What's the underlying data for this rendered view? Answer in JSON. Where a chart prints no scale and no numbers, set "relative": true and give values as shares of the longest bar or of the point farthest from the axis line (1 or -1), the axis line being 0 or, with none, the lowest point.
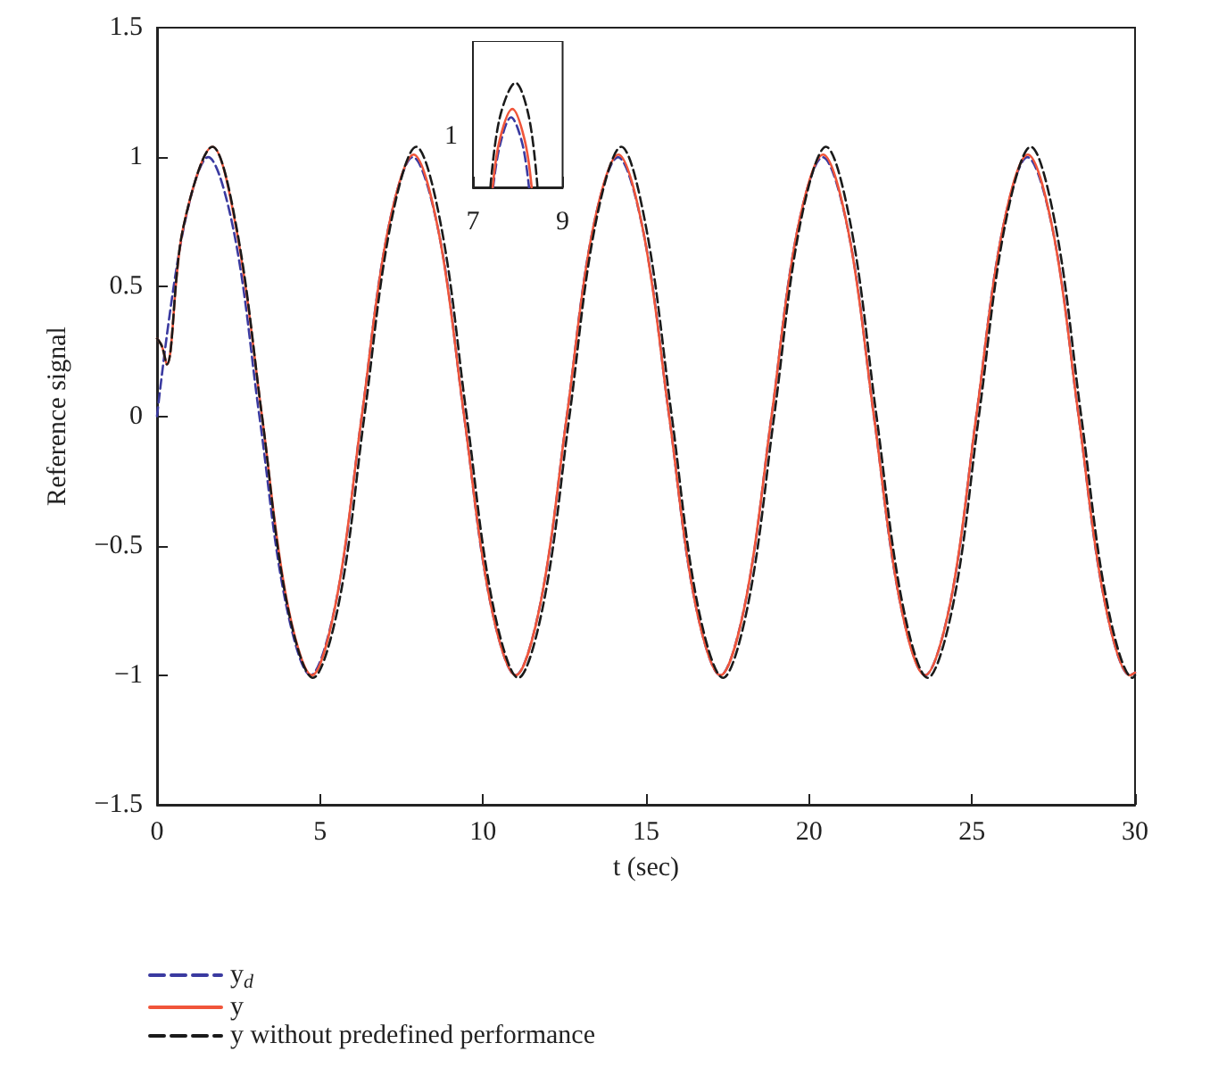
{
  "chart_data": [
    {
      "type": "line",
      "xlabel": "t (sec)",
      "ylabel": "Reference signal",
      "xlim": [
        0,
        30
      ],
      "ylim": [
        -1.5,
        1.5
      ],
      "xticks": [
        0,
        5,
        10,
        15,
        20,
        25,
        30
      ],
      "yticks": [
        {
          "value": -1.5,
          "label": "−1.5"
        },
        {
          "value": -1,
          "label": "−1"
        },
        {
          "value": -0.5,
          "label": "−0.5"
        },
        0,
        0.5,
        1,
        1.5
      ],
      "grid": false,
      "legend": "bottom left",
      "marker": "none",
      "series": [
        {
          "name": "y$_{d}$",
          "color": "#3a3aa0",
          "line_style": "dashed",
          "x": [
            0,
            0.79,
            1.57,
            2.36,
            3.14,
            3.93,
            4.71,
            5.5,
            6.28,
            7.07,
            7.85,
            8.64,
            9.42,
            10.21,
            11,
            11.78,
            12.57,
            13.35,
            14.14,
            14.92,
            15.71,
            16.49,
            17.28,
            18.06,
            18.85,
            19.63,
            20.42,
            21.21,
            21.99,
            22.78,
            23.56,
            24.35,
            25.13,
            25.92,
            26.7,
            27.49,
            28.27,
            29.06,
            29.85,
            30
          ],
          "values": [
            0,
            0.71,
            1,
            0.71,
            0,
            -0.71,
            -1,
            -0.71,
            0,
            0.71,
            1,
            0.71,
            0,
            -0.71,
            -1,
            -0.71,
            0,
            0.71,
            1,
            0.71,
            0,
            -0.71,
            -1,
            -0.71,
            0,
            0.71,
            1,
            0.71,
            0,
            -0.71,
            -1,
            -0.71,
            0,
            0.71,
            1,
            0.71,
            0,
            -0.71,
            -1,
            -0.99
          ]
        },
        {
          "name": "y",
          "color": "#f0553a",
          "line_style": "solid",
          "x": [
            0,
            0.15,
            0.3,
            0.79,
            1.7,
            2.45,
            3.22,
            3.98,
            4.75,
            5.5,
            6.28,
            7.07,
            7.87,
            8.64,
            9.42,
            10.21,
            11,
            11.78,
            12.57,
            13.35,
            14.15,
            14.92,
            15.71,
            16.49,
            17.28,
            18.06,
            18.85,
            19.63,
            20.43,
            21.21,
            21.99,
            22.78,
            23.56,
            24.35,
            25.13,
            25.92,
            26.71,
            27.49,
            28.27,
            29.06,
            29.85,
            30
          ],
          "values": [
            0.3,
            0.27,
            0.2,
            0.72,
            1.04,
            0.71,
            0,
            -0.71,
            -1,
            -0.71,
            0,
            0.71,
            1.01,
            0.71,
            0,
            -0.71,
            -1,
            -0.71,
            0,
            0.71,
            1.01,
            0.71,
            0,
            -0.71,
            -1,
            -0.71,
            0,
            0.71,
            1.01,
            0.71,
            0,
            -0.71,
            -1,
            -0.71,
            0,
            0.71,
            1.01,
            0.71,
            0,
            -0.71,
            -1,
            -0.99
          ]
        },
        {
          "name": "y without predefined performance",
          "color": "#1a1a1a",
          "line_style": "dashed",
          "x": [
            0,
            0.15,
            0.3,
            0.79,
            1.7,
            2.45,
            3.22,
            3.98,
            4.78,
            5.58,
            6.36,
            7.15,
            7.95,
            8.72,
            9.5,
            10.29,
            11.08,
            11.86,
            12.65,
            13.43,
            14.24,
            15,
            15.79,
            16.57,
            17.36,
            18.14,
            18.93,
            19.71,
            20.52,
            21.29,
            22.07,
            22.86,
            23.64,
            24.43,
            25.21,
            26,
            26.8,
            27.57,
            28.35,
            29.14,
            29.93,
            30
          ],
          "values": [
            0.3,
            0.27,
            0.2,
            0.72,
            1.04,
            0.72,
            0,
            -0.72,
            -1.01,
            -0.72,
            0,
            0.73,
            1.04,
            0.73,
            0,
            -0.72,
            -1.01,
            -0.72,
            0,
            0.73,
            1.04,
            0.73,
            0,
            -0.72,
            -1.01,
            -0.72,
            0,
            0.73,
            1.04,
            0.73,
            0,
            -0.72,
            -1.01,
            -0.72,
            0,
            0.73,
            1.04,
            0.73,
            0,
            -0.72,
            -1.01,
            -1
          ]
        }
      ]
    },
    {
      "type": "line",
      "relative": true,
      "xlim": [
        7,
        9
      ],
      "xticks": [
        7,
        9
      ],
      "annotations": [
        "1"
      ],
      "grid": false,
      "marker": "none",
      "series": [
        {
          "color": "#3a3aa0",
          "line_style": "dashed",
          "x": [
            7.45,
            7.6,
            7.85,
            8.1,
            8.25
          ],
          "values": [
            0,
            0.4,
            0.67,
            0.42,
            0
          ]
        },
        {
          "color": "#f0553a",
          "line_style": "solid",
          "x": [
            7.44,
            7.6,
            7.88,
            8.15,
            8.31
          ],
          "values": [
            0,
            0.46,
            0.75,
            0.46,
            0
          ]
        },
        {
          "color": "#1a1a1a",
          "line_style": "dashed",
          "x": [
            7.39,
            7.6,
            7.95,
            8.25,
            8.44
          ],
          "values": [
            0,
            0.67,
            1,
            0.67,
            0
          ]
        }
      ]
    }
  ]
}
